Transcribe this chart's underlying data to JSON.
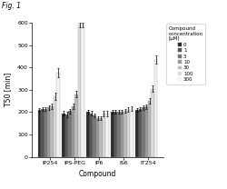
{
  "title": "Fig. 1",
  "xlabel": "Compound",
  "ylabel": "T50 [min]",
  "compounds": [
    "IP254",
    "IPS-PEG",
    "IP6",
    "IS6",
    "IT254"
  ],
  "concentrations": [
    "0",
    "1",
    "3",
    "10",
    "30",
    "100",
    "300"
  ],
  "bar_colors": [
    "#2d2d2d",
    "#555555",
    "#777777",
    "#999999",
    "#bbbbbb",
    "#dddddd",
    "#f2f2f2"
  ],
  "ylim": [
    0,
    600
  ],
  "yticks": [
    0,
    100,
    200,
    300,
    400,
    500,
    600
  ],
  "values": {
    "IP254": [
      210,
      215,
      215,
      220,
      225,
      270,
      375
    ],
    "IPS-PEG": [
      195,
      190,
      205,
      225,
      280,
      590,
      590
    ],
    "IP6": [
      200,
      195,
      185,
      175,
      175,
      195,
      195
    ],
    "IS6": [
      200,
      200,
      200,
      200,
      205,
      210,
      215
    ],
    "IT254": [
      210,
      215,
      220,
      225,
      250,
      305,
      435
    ]
  },
  "errors": {
    "IP254": [
      8,
      8,
      8,
      10,
      12,
      15,
      20
    ],
    "IPS-PEG": [
      10,
      12,
      10,
      12,
      15,
      10,
      10
    ],
    "IP6": [
      10,
      10,
      8,
      8,
      8,
      12,
      12
    ],
    "IS6": [
      8,
      8,
      8,
      8,
      8,
      10,
      10
    ],
    "IT254": [
      8,
      8,
      10,
      10,
      12,
      15,
      20
    ]
  },
  "legend_title": "Compound\nconcentration\n[μM]",
  "figsize": [
    2.5,
    2.08
  ],
  "dpi": 100
}
